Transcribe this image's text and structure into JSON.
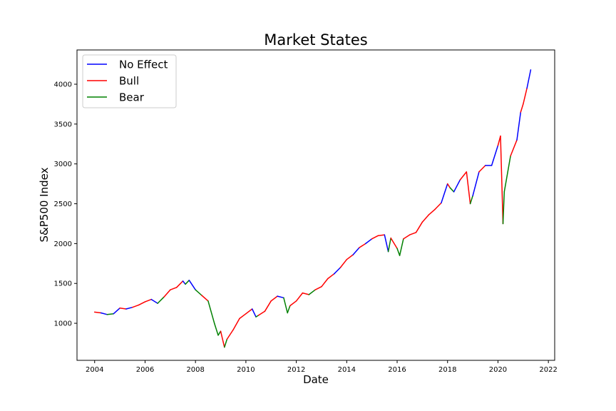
{
  "chart_data": {
    "type": "line",
    "title": "Market States",
    "xlabel": "Date",
    "ylabel": "S&P500 Index",
    "x_ticks": [
      "2004",
      "2006",
      "2008",
      "2010",
      "2012",
      "2014",
      "2016",
      "2018",
      "2020",
      "2022"
    ],
    "y_ticks": [
      "1000",
      "1500",
      "2000",
      "2500",
      "3000",
      "3500",
      "4000"
    ],
    "xlim": [
      2003.3,
      2022.25
    ],
    "ylim": [
      535,
      4430
    ],
    "grid": false,
    "legend_position": "top-left",
    "series": [
      {
        "name": "No Effect",
        "color": "#0000ff"
      },
      {
        "name": "Bull",
        "color": "#ff0000"
      },
      {
        "name": "Bear",
        "color": "#008000"
      }
    ],
    "x": [
      2004.0,
      2004.25,
      2004.5,
      2004.75,
      2005.0,
      2005.25,
      2005.5,
      2005.75,
      2006.0,
      2006.25,
      2006.5,
      2006.75,
      2007.0,
      2007.25,
      2007.5,
      2007.6,
      2007.75,
      2008.0,
      2008.25,
      2008.5,
      2008.75,
      2008.9,
      2009.0,
      2009.15,
      2009.25,
      2009.5,
      2009.75,
      2010.0,
      2010.25,
      2010.4,
      2010.5,
      2010.75,
      2011.0,
      2011.25,
      2011.5,
      2011.65,
      2011.75,
      2012.0,
      2012.25,
      2012.5,
      2012.75,
      2013.0,
      2013.25,
      2013.5,
      2013.75,
      2014.0,
      2014.25,
      2014.5,
      2014.75,
      2015.0,
      2015.25,
      2015.5,
      2015.65,
      2015.75,
      2016.0,
      2016.1,
      2016.25,
      2016.5,
      2016.75,
      2017.0,
      2017.25,
      2017.5,
      2017.75,
      2018.0,
      2018.1,
      2018.25,
      2018.5,
      2018.75,
      2018.9,
      2019.0,
      2019.25,
      2019.5,
      2019.75,
      2020.0,
      2020.1,
      2020.2,
      2020.25,
      2020.5,
      2020.75,
      2020.9,
      2021.0,
      2021.15,
      2021.3
    ],
    "y": [
      1140,
      1130,
      1110,
      1120,
      1190,
      1180,
      1200,
      1230,
      1270,
      1300,
      1250,
      1330,
      1420,
      1450,
      1530,
      1490,
      1540,
      1420,
      1350,
      1280,
      1000,
      850,
      900,
      700,
      800,
      920,
      1060,
      1120,
      1180,
      1080,
      1100,
      1150,
      1280,
      1340,
      1320,
      1130,
      1220,
      1280,
      1380,
      1360,
      1420,
      1460,
      1560,
      1620,
      1700,
      1800,
      1860,
      1950,
      2000,
      2060,
      2100,
      2110,
      1900,
      2070,
      1940,
      1850,
      2060,
      2110,
      2140,
      2270,
      2360,
      2430,
      2510,
      2750,
      2700,
      2650,
      2800,
      2900,
      2500,
      2600,
      2900,
      2980,
      2980,
      3230,
      3350,
      2250,
      2650,
      3100,
      3300,
      3650,
      3750,
      3950,
      4180
    ],
    "states": [
      1,
      0,
      2,
      0,
      1,
      0,
      1,
      1,
      1,
      0,
      2,
      1,
      1,
      1,
      0,
      2,
      0,
      2,
      1,
      2,
      2,
      2,
      1,
      2,
      1,
      1,
      1,
      1,
      0,
      2,
      1,
      1,
      1,
      0,
      2,
      2,
      1,
      1,
      1,
      2,
      1,
      1,
      1,
      0,
      1,
      1,
      0,
      1,
      0,
      1,
      1,
      0,
      2,
      1,
      2,
      2,
      1,
      1,
      1,
      1,
      1,
      1,
      0,
      1,
      2,
      0,
      1,
      1,
      2,
      0,
      1,
      0,
      0,
      1,
      1,
      2,
      2,
      1,
      0,
      1,
      1,
      0,
      1
    ]
  }
}
